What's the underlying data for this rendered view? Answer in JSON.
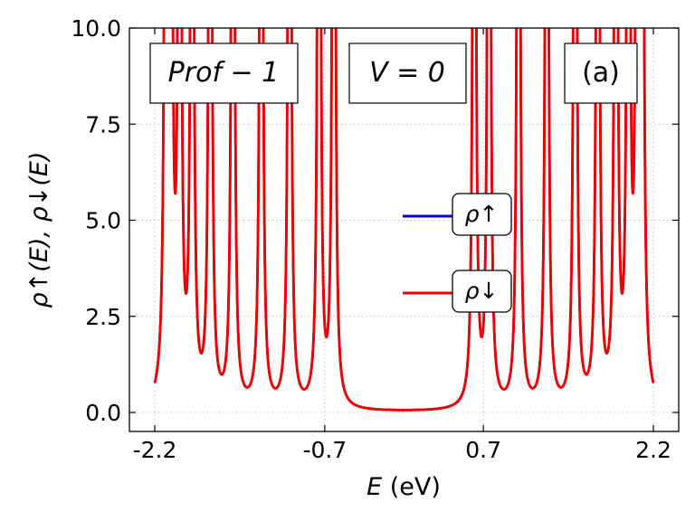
{
  "chart_data": {
    "type": "line",
    "xlabel_italic": "E",
    "xlabel_unit": " (eV)",
    "ylabel": "ρ↑(E),  ρ↓(E)",
    "xlim": [
      -2.2,
      2.2
    ],
    "ylim": [
      0,
      10
    ],
    "x_ticks": [
      -2.2,
      -0.7,
      0.7,
      2.2
    ],
    "x_tick_labels": [
      "-2.2",
      "-0.7",
      "0.7",
      "2.2"
    ],
    "y_ticks": [
      0,
      2.5,
      5,
      7.5,
      10
    ],
    "y_tick_labels": [
      "0.0",
      "2.5",
      "5.0",
      "7.5",
      "10.0"
    ],
    "grid": true,
    "annotations": {
      "profile": "Prof − 1",
      "voltage": "V = 0",
      "panel": "(a)"
    },
    "legend": {
      "placement": "center-right",
      "entries": [
        {
          "label": "ρ↑",
          "color": "#0000cc"
        },
        {
          "label": "ρ↓",
          "color": "#ee0000"
        }
      ]
    },
    "series": [
      {
        "name": "ρ↑",
        "color": "#0000cc",
        "peaks": [
          -2.1,
          -2.06,
          -1.98,
          -1.87,
          -1.71,
          -1.51,
          -1.26,
          -1.01,
          -0.75,
          -0.62,
          0.62,
          0.75,
          1.01,
          1.26,
          1.51,
          1.71,
          1.87,
          1.98,
          2.06,
          2.1
        ],
        "valley_floor": 0.3
      },
      {
        "name": "ρ↓",
        "color": "#ee0000",
        "peaks": [
          -2.1,
          -2.06,
          -1.98,
          -1.87,
          -1.71,
          -1.51,
          -1.26,
          -1.01,
          -0.75,
          -0.62,
          0.62,
          0.75,
          1.01,
          1.26,
          1.51,
          1.71,
          1.87,
          1.98,
          2.06,
          2.1
        ],
        "valley_floor": 0.3
      }
    ]
  }
}
